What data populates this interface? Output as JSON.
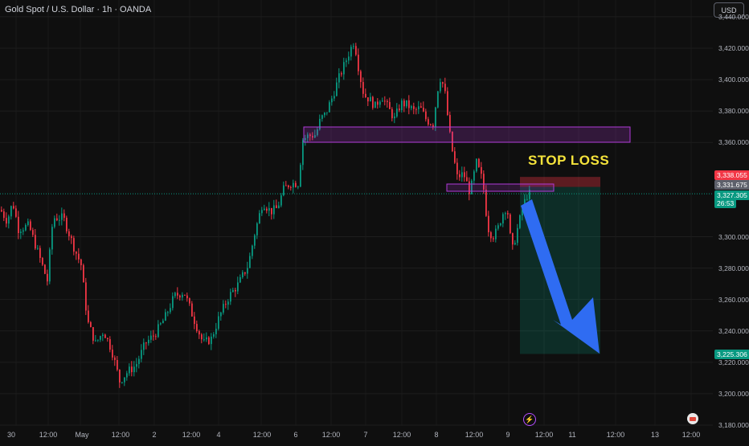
{
  "symbol": {
    "title": "Gold Spot / U.S. Dollar · 1h · OANDA"
  },
  "currency_button": {
    "label": "USD"
  },
  "annotation": {
    "stop_loss_label": "STOP LOSS"
  },
  "price_axis": {
    "ticks": [
      "3,440.000",
      "3,420.000",
      "3,400.000",
      "3,380.000",
      "3,360.000",
      "3,300.000",
      "3,280.000",
      "3,260.000",
      "3,240.000",
      "3,220.000",
      "3,200.000",
      "3,180.000"
    ]
  },
  "time_axis": {
    "labels": [
      "30",
      "12:00",
      "May",
      "12:00",
      "2",
      "12:00",
      "4",
      "12:00",
      "6",
      "12:00",
      "7",
      "12:00",
      "8",
      "12:00",
      "9",
      "12:00",
      "11",
      "12:00",
      "13",
      "12:00"
    ]
  },
  "price_badges": {
    "stop": "3,338.055",
    "entry": "3,331.675",
    "current": "3,327.305",
    "countdown": "26:53",
    "target": "3,225.306"
  },
  "colors": {
    "up": "#089981",
    "down": "#f23645",
    "zone": "#b03ad8",
    "arrow": "#2f6cf2",
    "stop_badge": "#f23645",
    "target_badge": "#089981",
    "entry_badge": "#5d606b"
  },
  "icons": {
    "flash": "lightning-icon",
    "calendar": "calendar-icon"
  },
  "chart_data": {
    "type": "candlestick",
    "title": "Gold Spot / U.S. Dollar · 1h · OANDA",
    "ylim": [
      3180,
      3445
    ],
    "y_ticks": [
      3440,
      3420,
      3400,
      3380,
      3360,
      3300,
      3280,
      3260,
      3240,
      3220,
      3200,
      3180
    ],
    "grid": true,
    "path": [
      [
        0,
        3317
      ],
      [
        8,
        3310
      ],
      [
        15,
        3322
      ],
      [
        22,
        3305
      ],
      [
        35,
        3307
      ],
      [
        45,
        3292
      ],
      [
        58,
        3272
      ],
      [
        65,
        3312
      ],
      [
        78,
        3312
      ],
      [
        92,
        3292
      ],
      [
        100,
        3282
      ],
      [
        108,
        3246
      ],
      [
        118,
        3232
      ],
      [
        128,
        3240
      ],
      [
        138,
        3228
      ],
      [
        148,
        3208
      ],
      [
        158,
        3214
      ],
      [
        168,
        3218
      ],
      [
        180,
        3232
      ],
      [
        192,
        3238
      ],
      [
        204,
        3248
      ],
      [
        216,
        3262
      ],
      [
        228,
        3265
      ],
      [
        240,
        3248
      ],
      [
        252,
        3232
      ],
      [
        262,
        3235
      ],
      [
        272,
        3249
      ],
      [
        284,
        3262
      ],
      [
        296,
        3270
      ],
      [
        308,
        3282
      ],
      [
        316,
        3302
      ],
      [
        326,
        3322
      ],
      [
        336,
        3316
      ],
      [
        344,
        3318
      ],
      [
        352,
        3330
      ],
      [
        360,
        3334
      ],
      [
        370,
        3334
      ],
      [
        376,
        3362
      ],
      [
        382,
        3364
      ],
      [
        392,
        3365
      ],
      [
        398,
        3375
      ],
      [
        404,
        3378
      ],
      [
        412,
        3388
      ],
      [
        420,
        3400
      ],
      [
        428,
        3410
      ],
      [
        434,
        3418
      ],
      [
        440,
        3425
      ],
      [
        446,
        3405
      ],
      [
        452,
        3390
      ],
      [
        458,
        3388
      ],
      [
        466,
        3383
      ],
      [
        474,
        3390
      ],
      [
        482,
        3382
      ],
      [
        490,
        3375
      ],
      [
        498,
        3385
      ],
      [
        506,
        3384
      ],
      [
        514,
        3380
      ],
      [
        522,
        3382
      ],
      [
        530,
        3374
      ],
      [
        538,
        3372
      ],
      [
        546,
        3402
      ],
      [
        552,
        3395
      ],
      [
        560,
        3360
      ],
      [
        568,
        3338
      ],
      [
        576,
        3340
      ],
      [
        584,
        3328
      ],
      [
        592,
        3347
      ],
      [
        600,
        3335
      ],
      [
        606,
        3306
      ],
      [
        612,
        3300
      ],
      [
        618,
        3304
      ],
      [
        624,
        3314
      ],
      [
        630,
        3320
      ],
      [
        636,
        3290
      ],
      [
        642,
        3303
      ],
      [
        648,
        3315
      ],
      [
        654,
        3326
      ],
      [
        660,
        3328
      ]
    ],
    "horizontal_levels": {
      "stop": 3338.055,
      "entry": 3331.675,
      "current": 3327.305,
      "target": 3225.306
    }
  }
}
